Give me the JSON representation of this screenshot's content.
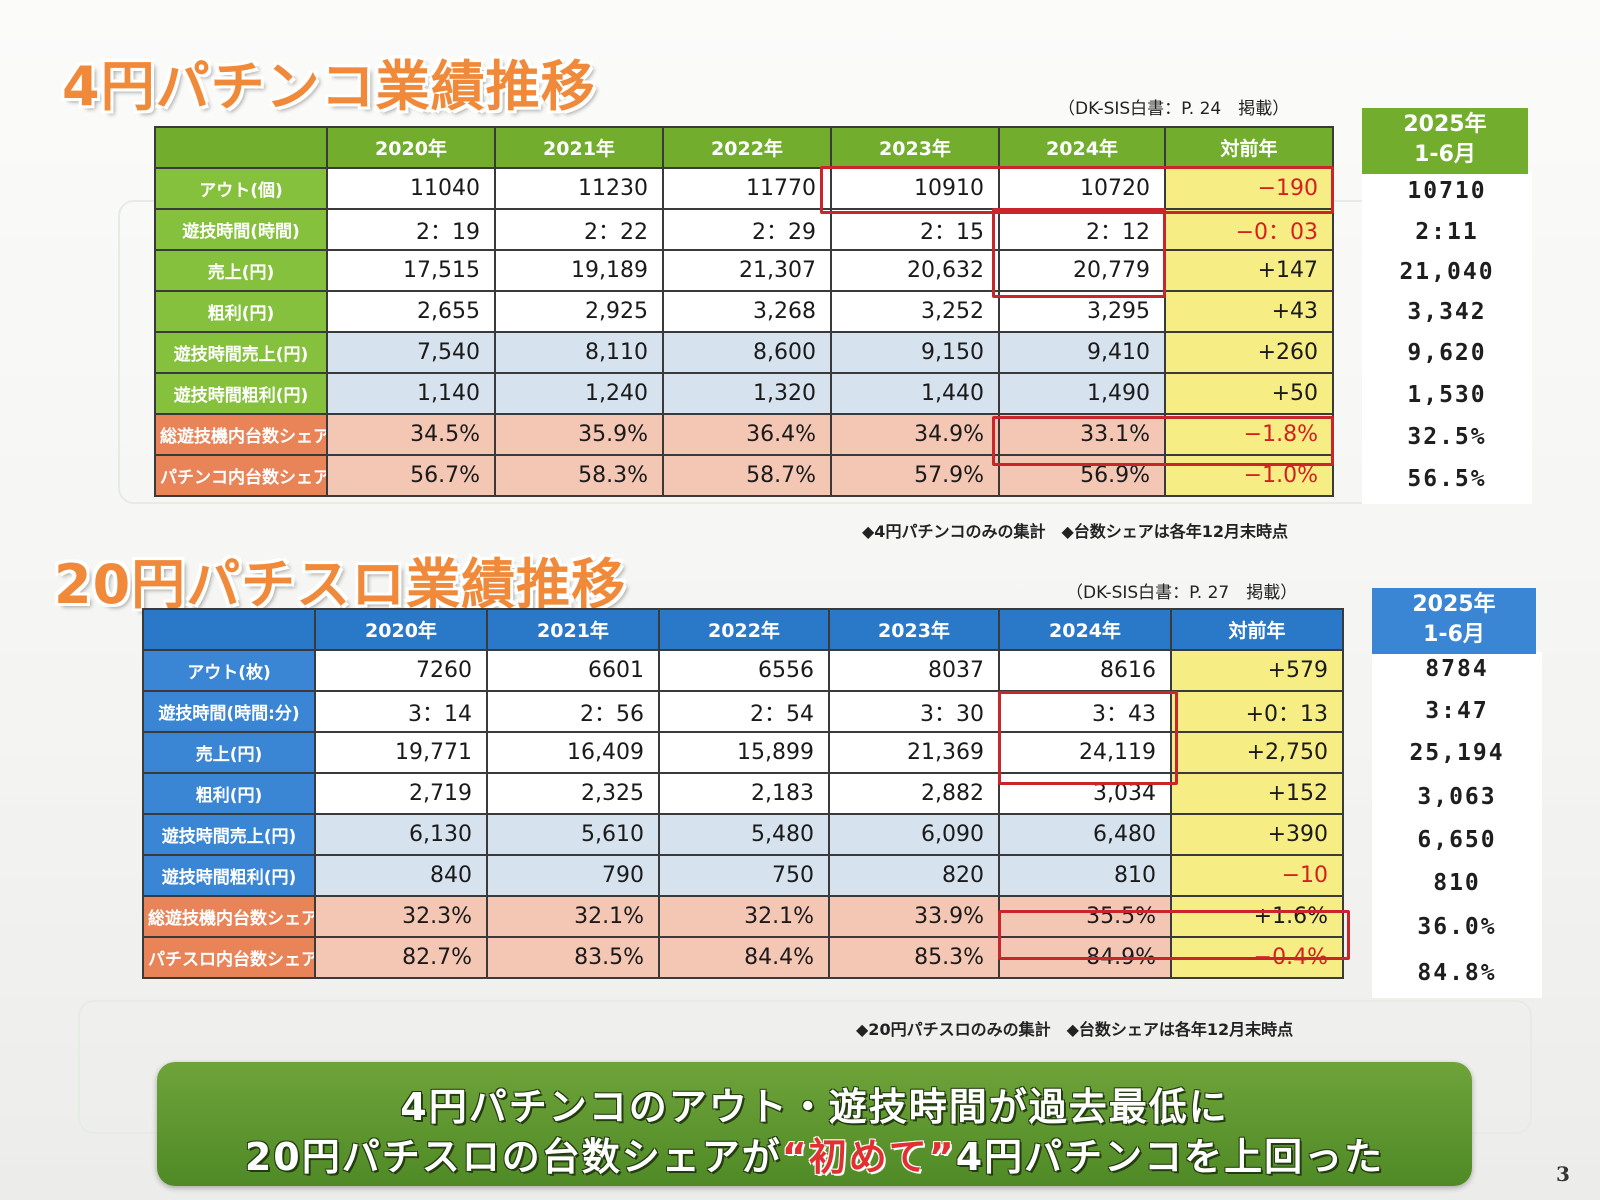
{
  "slide": {
    "page_number": "3"
  },
  "pachinko": {
    "title": "4円パチンコ業績推移",
    "source": "（DK-SIS白書：P. 24　掲載）",
    "headers": [
      "",
      "2020年",
      "2021年",
      "2022年",
      "2023年",
      "2024年",
      "対前年"
    ],
    "rows": [
      {
        "label": "アウト(個)",
        "values": [
          "11040",
          "11230",
          "11770",
          "10910",
          "10720"
        ],
        "yoy": "−190"
      },
      {
        "label": "遊技時間(時間)",
        "values": [
          "2：19",
          "2：22",
          "2：29",
          "2：15",
          "2：12"
        ],
        "yoy": "−0：03"
      },
      {
        "label": "売上(円)",
        "values": [
          "17,515",
          "19,189",
          "21,307",
          "20,632",
          "20,779"
        ],
        "yoy": "+147"
      },
      {
        "label": "粗利(円)",
        "values": [
          "2,655",
          "2,925",
          "3,268",
          "3,252",
          "3,295"
        ],
        "yoy": "+43"
      },
      {
        "label": "遊技時間売上(円)",
        "values": [
          "7,540",
          "8,110",
          "8,600",
          "9,150",
          "9,410"
        ],
        "yoy": "+260"
      },
      {
        "label": "遊技時間粗利(円)",
        "values": [
          "1,140",
          "1,240",
          "1,320",
          "1,440",
          "1,490"
        ],
        "yoy": "+50"
      },
      {
        "label": "総遊技機内台数シェア",
        "values": [
          "34.5%",
          "35.9%",
          "36.4%",
          "34.9%",
          "33.1%"
        ],
        "yoy": "−1.8%"
      },
      {
        "label": "パチンコ内台数シェア",
        "values": [
          "56.7%",
          "58.3%",
          "58.7%",
          "57.9%",
          "56.9%"
        ],
        "yoy": "−1.0%"
      }
    ],
    "side_header": [
      "2025年",
      "1-6月"
    ],
    "side_values": [
      "10710",
      "2:11",
      "21,040",
      "3,342",
      "9,620",
      "1,530",
      "32.5%",
      "56.5%"
    ],
    "footnote": "◆4円パチンコのみの集計　◆台数シェアは各年12月末時点"
  },
  "slot": {
    "title": "20円パチスロ業績推移",
    "source": "（DK-SIS白書：P. 27　掲載）",
    "headers": [
      "",
      "2020年",
      "2021年",
      "2022年",
      "2023年",
      "2024年",
      "対前年"
    ],
    "rows": [
      {
        "label": "アウト(枚)",
        "values": [
          "7260",
          "6601",
          "6556",
          "8037",
          "8616"
        ],
        "yoy": "+579"
      },
      {
        "label": "遊技時間(時間:分)",
        "values": [
          "3：14",
          "2：56",
          "2：54",
          "3：30",
          "3：43"
        ],
        "yoy": "+0：13"
      },
      {
        "label": "売上(円)",
        "values": [
          "19,771",
          "16,409",
          "15,899",
          "21,369",
          "24,119"
        ],
        "yoy": "+2,750"
      },
      {
        "label": "粗利(円)",
        "values": [
          "2,719",
          "2,325",
          "2,183",
          "2,882",
          "3,034"
        ],
        "yoy": "+152"
      },
      {
        "label": "遊技時間売上(円)",
        "values": [
          "6,130",
          "5,610",
          "5,480",
          "6,090",
          "6,480"
        ],
        "yoy": "+390"
      },
      {
        "label": "遊技時間粗利(円)",
        "values": [
          "840",
          "790",
          "750",
          "820",
          "810"
        ],
        "yoy": "−10"
      },
      {
        "label": "総遊技機内台数シェア",
        "values": [
          "32.3%",
          "32.1%",
          "32.1%",
          "33.9%",
          "35.5%"
        ],
        "yoy": "+1.6%"
      },
      {
        "label": "パチスロ内台数シェア",
        "values": [
          "82.7%",
          "83.5%",
          "84.4%",
          "85.3%",
          "84.9%"
        ],
        "yoy": "−0.4%"
      }
    ],
    "side_header": [
      "2025年",
      "1-6月"
    ],
    "side_values": [
      "8784",
      "3:47",
      "25,194",
      "3,063",
      "6,650",
      "810",
      "36.0%",
      "84.8%"
    ],
    "footnote": "◆20円パチスロのみの集計　◆台数シェアは各年12月末時点"
  },
  "conclusion": {
    "line1": "4円パチンコのアウト・遊技時間が過去最低に",
    "line2_before": "20円パチスロの台数シェアが",
    "line2_emph": "“初めて”",
    "line2_after": "4円パチンコを上回った"
  },
  "colors": {
    "pachinko_header": "#72ad2e",
    "pachinko_label": "#86c13d",
    "slot_header": "#2a78c8",
    "slot_label": "#3b86d4",
    "share_label": "#e98459",
    "yoy_highlight": "#f6ee84",
    "negative_text": "#d42020",
    "highlight_box": "#c8262b",
    "title_orange": "#f08a3a",
    "banner_green": "#5c942e"
  }
}
